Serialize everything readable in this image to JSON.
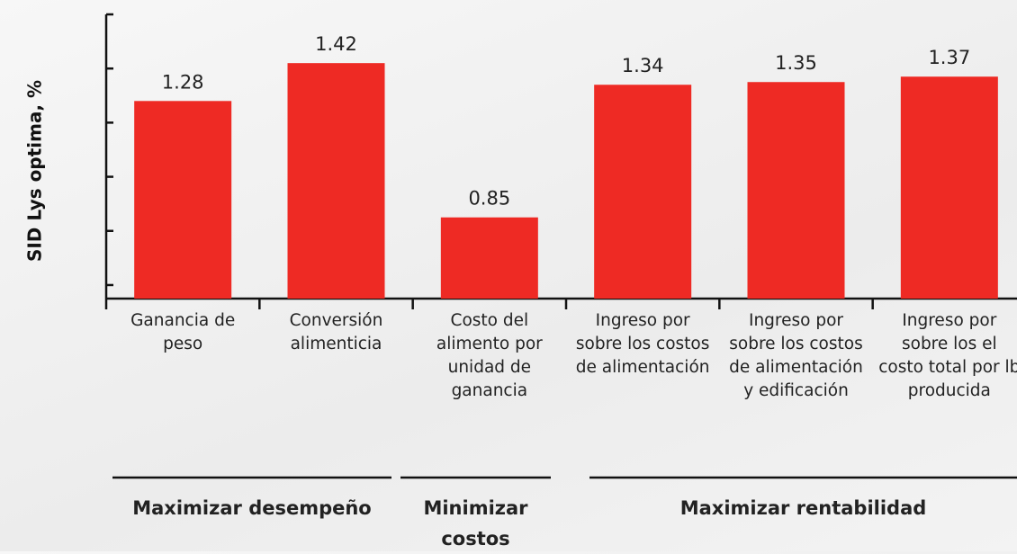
{
  "chart_data": {
    "type": "bar",
    "y_label": "SID Lys optima, %",
    "categories": [
      "Ganancia de peso",
      "Conversión alimenticia",
      "Costo del alimento por unidad de ganancia",
      "Ingreso por sobre los costos de alimentación",
      "Ingreso por sobre los costos de alimentación y edificación",
      "Ingreso por sobre los el costo total por lb producida"
    ],
    "values": [
      1.28,
      1.42,
      0.85,
      1.34,
      1.35,
      1.37
    ],
    "color": "#ee2a24",
    "ylim": [
      0.55,
      1.6
    ],
    "yticks": [
      0.6,
      0.8,
      1.0,
      1.2,
      1.4,
      1.6
    ],
    "groups": [
      "Maximizar desempeño",
      "Minimizar costos",
      "Maximizar rentabilidad"
    ]
  }
}
